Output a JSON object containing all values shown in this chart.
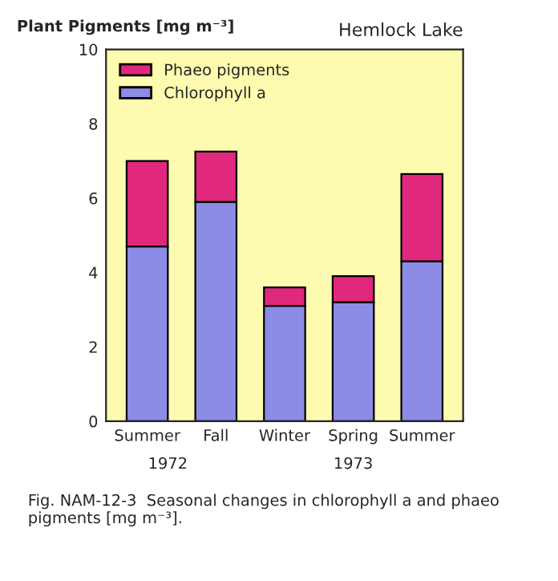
{
  "chart_data": {
    "type": "bar",
    "title": "Hemlock Lake",
    "ylabel": "Plant Pigments [mg m⁻³]",
    "categories": [
      "Summer",
      "Fall",
      "Winter",
      "Spring",
      "Summer"
    ],
    "stacked": true,
    "series": [
      {
        "name": "Chlorophyll a",
        "color": "#8c8ce6",
        "values": [
          4.7,
          5.9,
          3.1,
          3.2,
          4.3
        ]
      },
      {
        "name": "Phaeo pigments",
        "color": "#e0287c",
        "values": [
          2.3,
          1.35,
          0.5,
          0.7,
          2.35
        ]
      }
    ],
    "ylim": [
      0,
      10
    ],
    "yticks": [
      0,
      2,
      4,
      6,
      8,
      10
    ],
    "grid": false,
    "legend": "top left",
    "annotations": [
      "1972",
      "1973",
      "Fig. NAM-12-3  Seasonal changes in chlorophyll a and phaeo pigments [mg m⁻³]."
    ]
  }
}
